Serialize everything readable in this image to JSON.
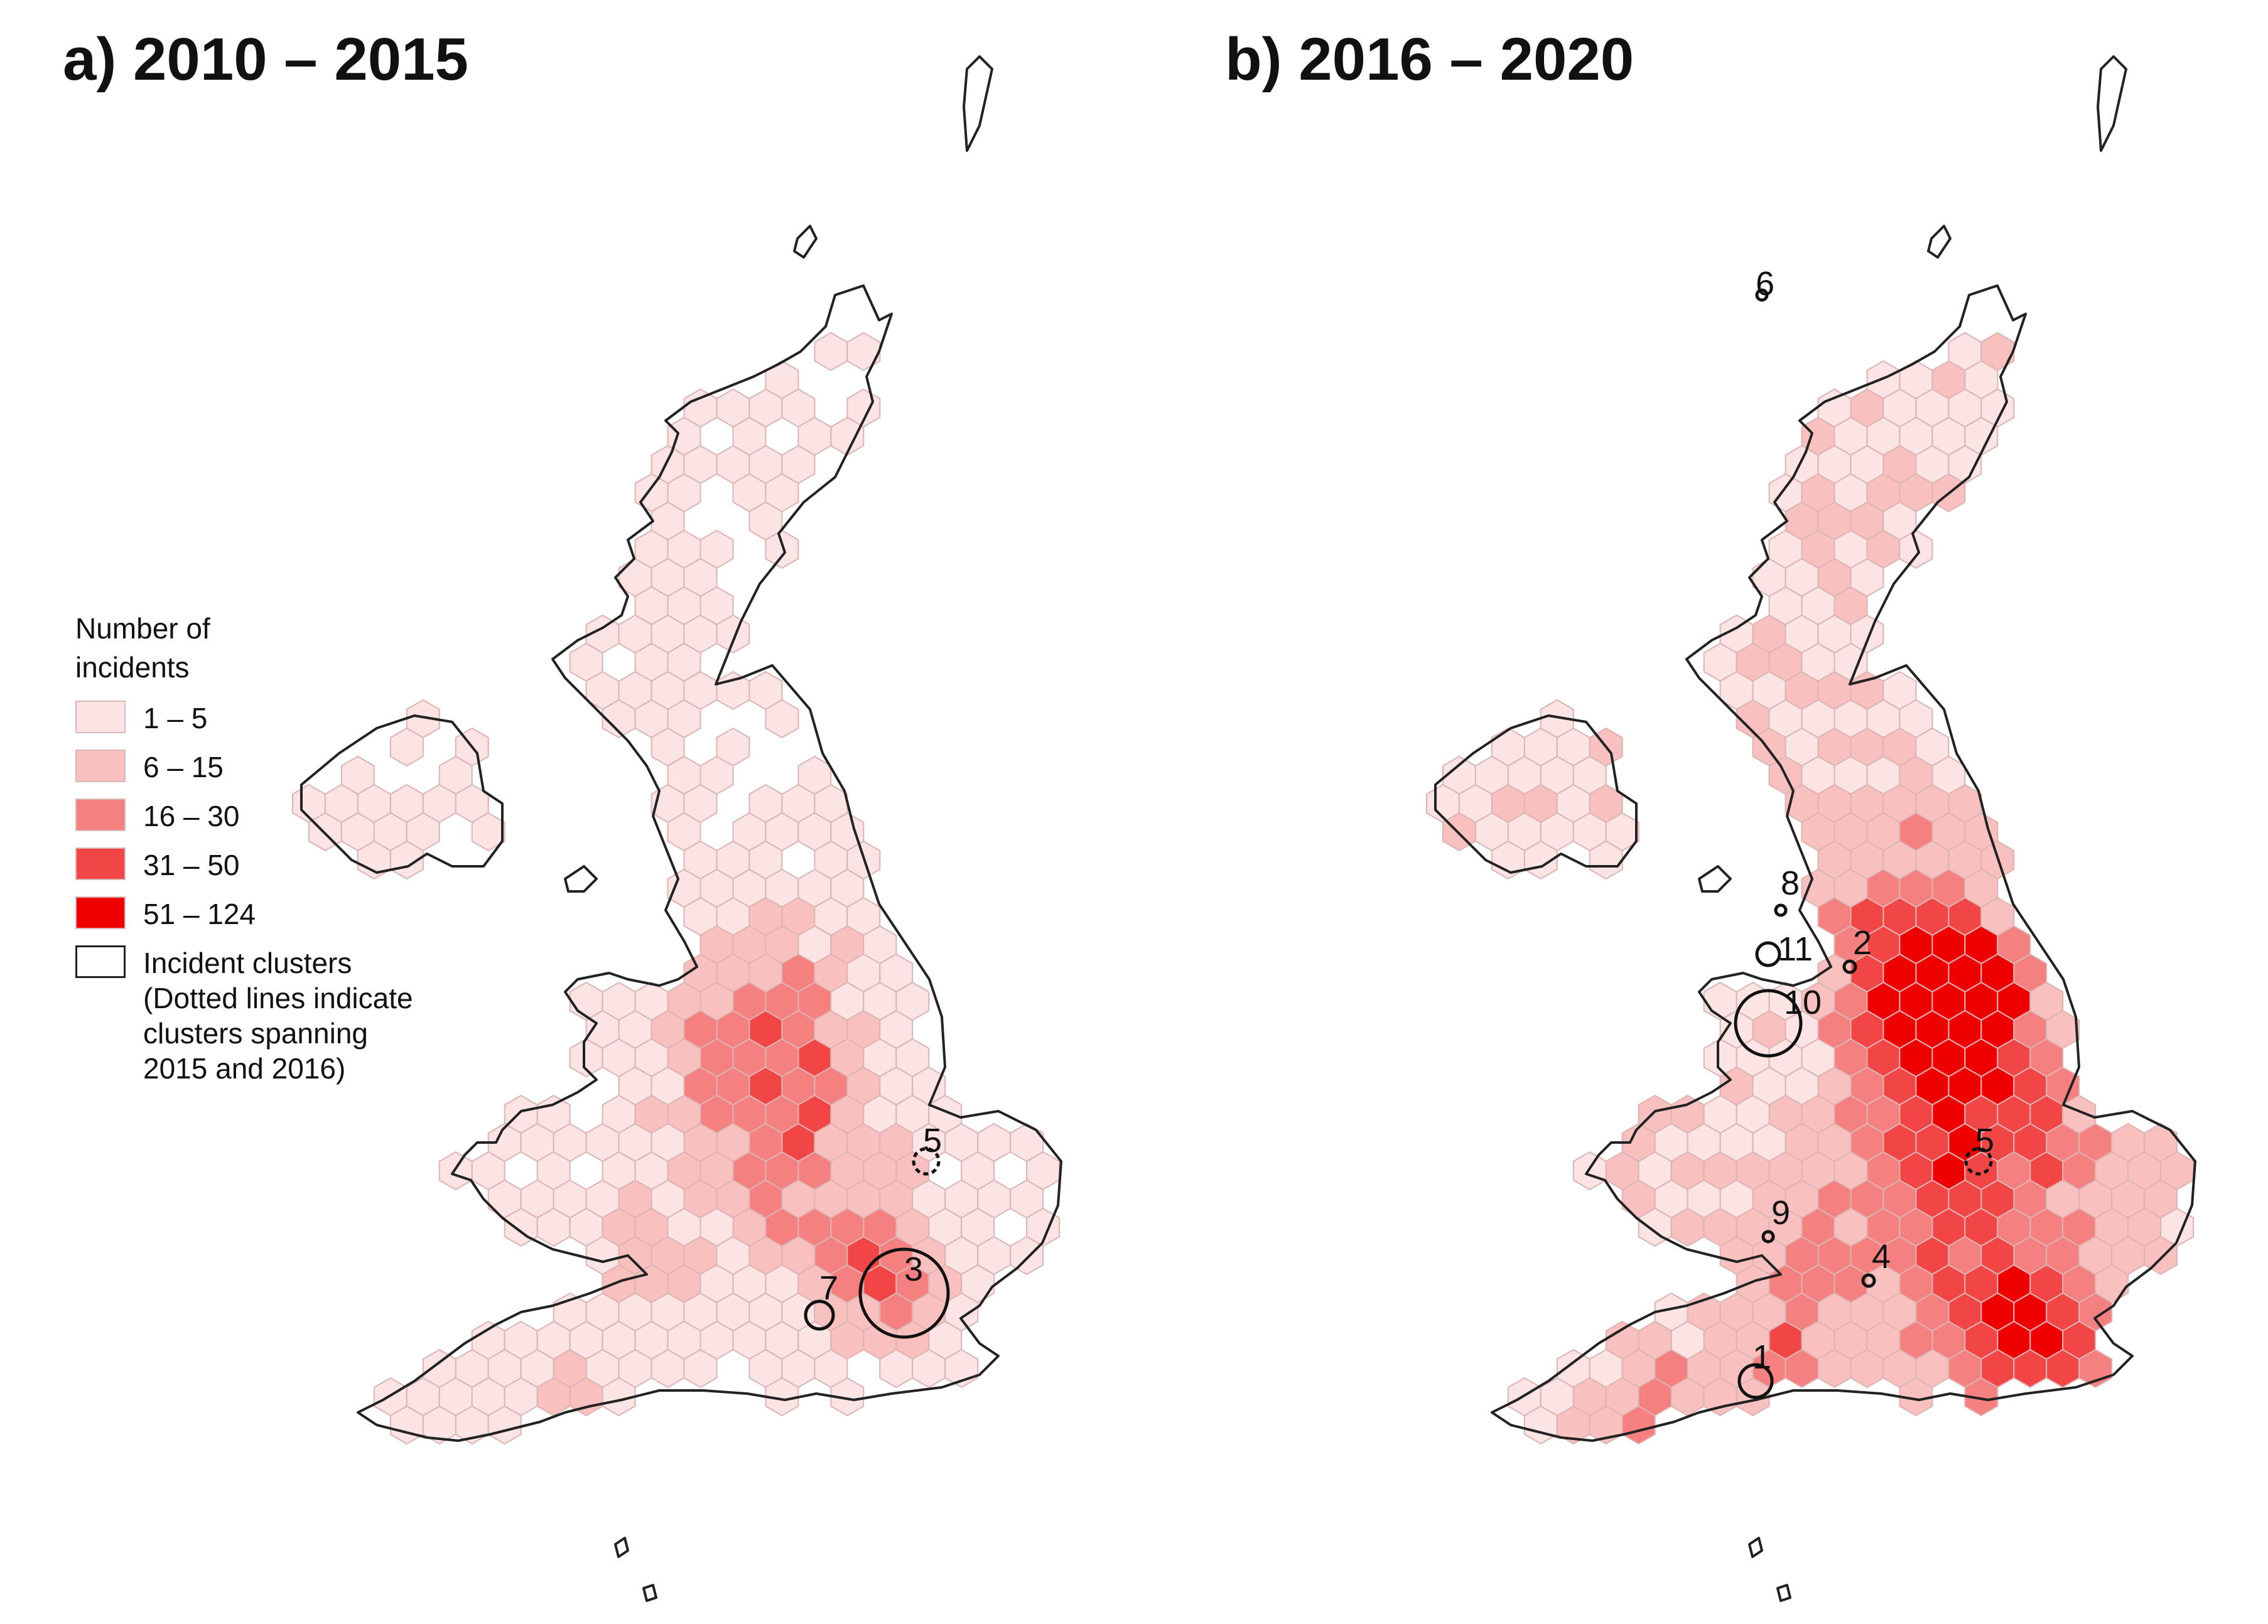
{
  "panels": [
    {
      "title": "a) 2010 – 2015",
      "clusters": [
        {
          "label": "3",
          "spanning": false
        },
        {
          "label": "5",
          "spanning": true
        },
        {
          "label": "7",
          "spanning": false
        }
      ]
    },
    {
      "title": "b) 2016 – 2020",
      "clusters": [
        {
          "label": "1",
          "spanning": false
        },
        {
          "label": "2",
          "spanning": false
        },
        {
          "label": "4",
          "spanning": false
        },
        {
          "label": "5",
          "spanning": true
        },
        {
          "label": "6",
          "spanning": false
        },
        {
          "label": "8",
          "spanning": false
        },
        {
          "label": "9",
          "spanning": false
        },
        {
          "label": "10",
          "spanning": false
        },
        {
          "label": "11",
          "spanning": false
        }
      ]
    }
  ],
  "legend": {
    "title_line1": "Number of",
    "title_line2": "incidents",
    "classes": [
      {
        "label": "1 – 5",
        "color": "#fce4e4"
      },
      {
        "label": "6 – 15",
        "color": "#f9c0c0"
      },
      {
        "label": "16 – 30",
        "color": "#f58080"
      },
      {
        "label": "31 – 50",
        "color": "#f24545"
      },
      {
        "label": "51 – 124",
        "color": "#ee0000"
      }
    ],
    "cluster_label": "Incident clusters",
    "cluster_note_1": "(Dotted lines indicate",
    "cluster_note_2": "clusters spanning",
    "cluster_note_3": "2015 and 2016)"
  },
  "colors": {
    "coastline": "#222222",
    "hex_border": "#dcb4b4",
    "cluster_outline": "#111111"
  }
}
